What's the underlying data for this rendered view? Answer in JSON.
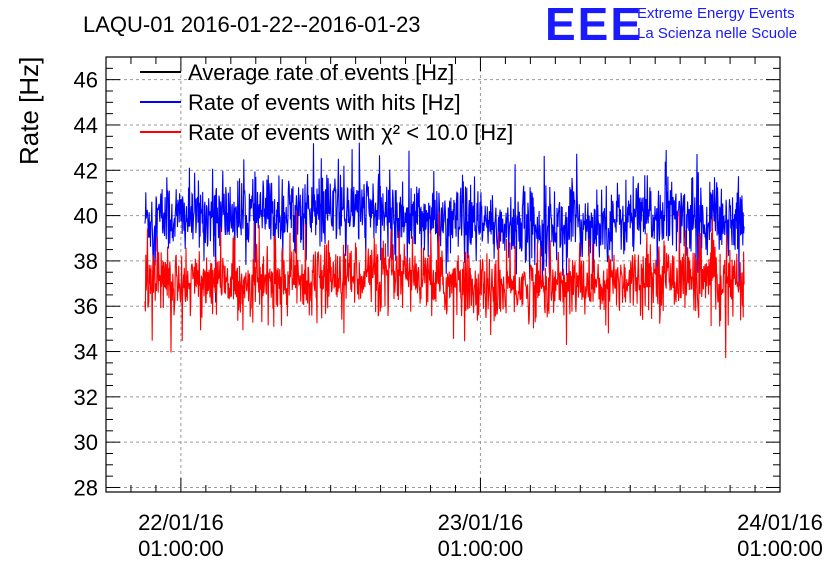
{
  "chart_data": {
    "type": "line",
    "title": "LAQU-01 2016-01-22--2016-01-23",
    "ylabel": "Rate [Hz]",
    "xlabel": "",
    "ylim": [
      27.8,
      47.0
    ],
    "yticks": [
      28,
      30,
      32,
      34,
      36,
      38,
      40,
      42,
      44,
      46
    ],
    "xlim": [
      -0.25,
      2.0
    ],
    "x_unit": "days since 22/01/16 01:00:00",
    "xticks": [
      {
        "value": 0,
        "line1": "22/01/16",
        "line2": "01:00:00"
      },
      {
        "value": 1,
        "line1": "23/01/16",
        "line2": "01:00:00"
      },
      {
        "value": 2,
        "line1": "24/01/16",
        "line2": "01:00:00"
      }
    ],
    "grid": true,
    "legend_position": "top-left",
    "series": [
      {
        "name": "Average rate of events [Hz]",
        "color": "#000000",
        "mean": null,
        "spread": null,
        "x_start": null,
        "x_end": null
      },
      {
        "name": "Rate of events with hits [Hz]",
        "color": "#0000ff",
        "mean": 39.9,
        "spread": 0.9,
        "x_start": -0.12,
        "x_end": 1.88,
        "trend": [
          [
            -0.12,
            39.9
          ],
          [
            0.3,
            40.1
          ],
          [
            0.6,
            40.3
          ],
          [
            1.0,
            39.5
          ],
          [
            1.3,
            39.6
          ],
          [
            1.6,
            40.0
          ],
          [
            1.88,
            39.8
          ]
        ]
      },
      {
        "name": "Rate of events with χ² < 10.0 [Hz]",
        "color": "#ff0000",
        "mean": 37.1,
        "spread": 0.8,
        "x_start": -0.12,
        "x_end": 1.88,
        "trend": [
          [
            -0.12,
            37.2
          ],
          [
            0.3,
            37.0
          ],
          [
            0.6,
            37.5
          ],
          [
            1.0,
            36.8
          ],
          [
            1.3,
            36.9
          ],
          [
            1.6,
            37.4
          ],
          [
            1.88,
            37.0
          ]
        ]
      }
    ]
  },
  "branding": {
    "logo": "EEE",
    "line1": "Extreme Energy Events",
    "line2": "La Scienza nelle Scuole"
  }
}
